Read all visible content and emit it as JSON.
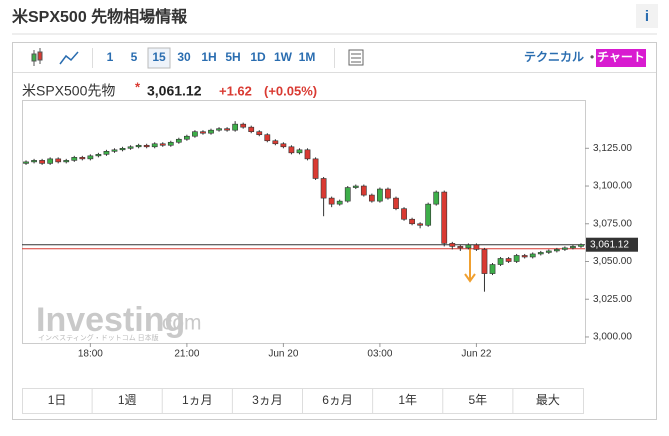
{
  "header": {
    "title": "米SPX500 先物相場情報",
    "info": "i"
  },
  "toolbar": {
    "timeframes": [
      "1",
      "5",
      "15",
      "30",
      "1H",
      "5H",
      "1D",
      "1W",
      "1M"
    ],
    "selected": "15",
    "technical": "テクニカル",
    "separator": "•",
    "chart": "チャート"
  },
  "quote": {
    "name": "米SPX500先物",
    "marker": "*",
    "price": "3,061.12",
    "change": "+1.62",
    "change_pct": "(+0.05%)"
  },
  "watermark": {
    "brand": "Investing",
    "domain": ".com",
    "sub": "インベスティング・ドットコム 日本版"
  },
  "ranges": [
    "1日",
    "1週",
    "1ヵ月",
    "3ヵ月",
    "6ヵ月",
    "1年",
    "5年",
    "最大"
  ],
  "chart_data": {
    "type": "candlestick",
    "categories": [
      null,
      null,
      null,
      null,
      null,
      null,
      null,
      null,
      "18:00",
      null,
      null,
      null,
      null,
      null,
      null,
      null,
      null,
      null,
      null,
      null,
      "21:00",
      null,
      null,
      null,
      null,
      null,
      null,
      null,
      null,
      null,
      null,
      null,
      "Jun 20",
      null,
      null,
      null,
      null,
      null,
      null,
      null,
      null,
      null,
      null,
      null,
      "03:00",
      null,
      null,
      null,
      null,
      null,
      null,
      null,
      null,
      null,
      null,
      null,
      "Jun 22",
      null,
      null,
      null,
      null,
      null,
      null,
      null,
      null,
      null,
      null,
      null,
      null,
      null
    ],
    "open": [
      3115,
      3116,
      3117,
      3115,
      3118,
      3116,
      3117,
      3119,
      3118,
      3120,
      3121,
      3123,
      3124,
      3125,
      3126,
      3127,
      3126,
      3128,
      3127,
      3129,
      3131,
      3133,
      3136,
      3135,
      3137,
      3138,
      3137,
      3141,
      3139,
      3136,
      3134,
      3130,
      3128,
      3126,
      3122,
      3124,
      3118,
      3105,
      3092,
      3088,
      3090,
      3099,
      3100,
      3094,
      3090,
      3098,
      3092,
      3085,
      3078,
      3075,
      3074,
      3088,
      3096,
      3062,
      3060,
      3059,
      3061,
      3058,
      3042,
      3048,
      3052,
      3050,
      3054,
      3053,
      3055,
      3056,
      3057,
      3058,
      3059,
      3060
    ],
    "high": [
      3117,
      3118,
      3118,
      3119,
      3119,
      3118,
      3120,
      3120,
      3121,
      3122,
      3124,
      3125,
      3126,
      3127,
      3128,
      3128,
      3129,
      3129,
      3130,
      3132,
      3134,
      3137,
      3137,
      3138,
      3139,
      3139,
      3143,
      3142,
      3140,
      3137,
      3135,
      3131,
      3129,
      3127,
      3125,
      3125,
      3119,
      3106,
      3093,
      3091,
      3100,
      3101,
      3101,
      3095,
      3099,
      3099,
      3093,
      3086,
      3079,
      3076,
      3089,
      3097,
      3097,
      3063,
      3061,
      3062,
      3062,
      3059,
      3049,
      3053,
      3053,
      3055,
      3055,
      3056,
      3057,
      3058,
      3059,
      3060,
      3061,
      3062
    ],
    "low": [
      3114,
      3115,
      3114,
      3114,
      3115,
      3115,
      3116,
      3117,
      3117,
      3119,
      3120,
      3122,
      3123,
      3124,
      3125,
      3125,
      3125,
      3126,
      3126,
      3128,
      3130,
      3132,
      3134,
      3134,
      3136,
      3136,
      3136,
      3138,
      3135,
      3133,
      3129,
      3127,
      3125,
      3121,
      3121,
      3117,
      3104,
      3080,
      3086,
      3087,
      3089,
      3098,
      3093,
      3089,
      3089,
      3091,
      3084,
      3077,
      3074,
      3072,
      3073,
      3087,
      3060,
      3058,
      3057,
      3058,
      3057,
      3030,
      3041,
      3047,
      3049,
      3049,
      3052,
      3052,
      3054,
      3055,
      3056,
      3057,
      3058,
      3059
    ],
    "close": [
      3116,
      3117,
      3115,
      3118,
      3116,
      3117,
      3119,
      3118,
      3120,
      3121,
      3123,
      3124,
      3125,
      3126,
      3127,
      3126,
      3128,
      3127,
      3129,
      3131,
      3133,
      3136,
      3135,
      3137,
      3138,
      3137,
      3141,
      3139,
      3136,
      3134,
      3130,
      3128,
      3126,
      3122,
      3124,
      3118,
      3105,
      3092,
      3088,
      3090,
      3099,
      3100,
      3094,
      3090,
      3098,
      3092,
      3085,
      3078,
      3075,
      3074,
      3088,
      3096,
      3062,
      3060,
      3059,
      3061,
      3058,
      3042,
      3048,
      3052,
      3050,
      3054,
      3053,
      3055,
      3056,
      3057,
      3058,
      3059,
      3060,
      3061.12
    ],
    "up_color": "#3dae49",
    "down_color": "#d93a32",
    "ylim": [
      2996,
      3157
    ],
    "yticks": [
      {
        "value": 3000,
        "label": "3,000.00"
      },
      {
        "value": 3025,
        "label": "3,025.00"
      },
      {
        "value": 3050,
        "label": "3,050.00"
      },
      {
        "value": 3075,
        "label": "3,075.00"
      },
      {
        "value": 3100,
        "label": "3,100.00"
      },
      {
        "value": 3125,
        "label": "3,125.00"
      }
    ],
    "last_price": {
      "value": 3061.12,
      "label": "3,061.12"
    }
  }
}
